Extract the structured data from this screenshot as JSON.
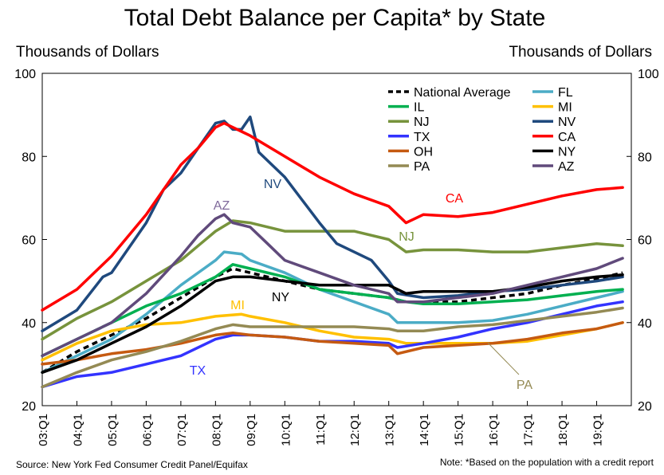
{
  "chart_data": {
    "type": "line",
    "title": "Total Debt Balance per Capita* by State",
    "ylabel_left": "Thousands of Dollars",
    "ylabel_right": "Thousands of Dollars",
    "source": "Source: New York Fed Consumer Credit Panel/Equifax",
    "note": "Note:  *Based on the population with a credit report",
    "xlim": [
      2003.0,
      2020.0
    ],
    "ylim": [
      20,
      100
    ],
    "yticks": [
      20,
      40,
      60,
      80,
      100
    ],
    "xticks": [
      {
        "label": "03:Q1",
        "x": 2003.0
      },
      {
        "label": "04:Q1",
        "x": 2004.0
      },
      {
        "label": "05:Q1",
        "x": 2005.0
      },
      {
        "label": "06:Q1",
        "x": 2006.0
      },
      {
        "label": "07:Q1",
        "x": 2007.0
      },
      {
        "label": "08:Q1",
        "x": 2008.0
      },
      {
        "label": "09:Q1",
        "x": 2009.0
      },
      {
        "label": "10:Q1",
        "x": 2010.0
      },
      {
        "label": "11:Q1",
        "x": 2011.0
      },
      {
        "label": "12:Q1",
        "x": 2012.0
      },
      {
        "label": "13:Q1",
        "x": 2013.0
      },
      {
        "label": "14:Q1",
        "x": 2014.0
      },
      {
        "label": "15:Q1",
        "x": 2015.0
      },
      {
        "label": "16:Q1",
        "x": 2016.0
      },
      {
        "label": "17:Q1",
        "x": 2017.0
      },
      {
        "label": "18:Q1",
        "x": 2018.0
      },
      {
        "label": "19:Q1",
        "x": 2019.0
      }
    ],
    "grid": false,
    "legend_position": "top-right",
    "series": [
      {
        "name": "National Average",
        "color": "#000000",
        "dashed": true,
        "points": [
          [
            2003.0,
            28
          ],
          [
            2004.0,
            33
          ],
          [
            2005.0,
            37
          ],
          [
            2006.0,
            41
          ],
          [
            2007.0,
            46
          ],
          [
            2008.0,
            51
          ],
          [
            2008.5,
            53
          ],
          [
            2009.0,
            52
          ],
          [
            2010.0,
            50
          ],
          [
            2011.0,
            48
          ],
          [
            2012.0,
            47
          ],
          [
            2013.0,
            46
          ],
          [
            2013.5,
            45
          ],
          [
            2014.0,
            45
          ],
          [
            2015.0,
            45
          ],
          [
            2016.0,
            46
          ],
          [
            2017.0,
            47
          ],
          [
            2018.0,
            49
          ],
          [
            2019.0,
            50.5
          ],
          [
            2019.75,
            52
          ]
        ]
      },
      {
        "name": "FL",
        "color": "#4bacc6",
        "dashed": false,
        "points": [
          [
            2003.0,
            28
          ],
          [
            2004.0,
            32
          ],
          [
            2005.0,
            36
          ],
          [
            2006.0,
            42
          ],
          [
            2007.0,
            49
          ],
          [
            2008.0,
            55
          ],
          [
            2008.25,
            57
          ],
          [
            2008.75,
            56.5
          ],
          [
            2009.0,
            55
          ],
          [
            2010.0,
            52
          ],
          [
            2011.0,
            48
          ],
          [
            2012.0,
            45
          ],
          [
            2013.0,
            42
          ],
          [
            2013.25,
            40
          ],
          [
            2014.0,
            40
          ],
          [
            2015.0,
            40
          ],
          [
            2016.0,
            40.5
          ],
          [
            2017.0,
            42
          ],
          [
            2018.0,
            44
          ],
          [
            2019.0,
            46
          ],
          [
            2019.75,
            47.5
          ]
        ]
      },
      {
        "name": "IL",
        "color": "#00b050",
        "dashed": false,
        "points": [
          [
            2003.0,
            32
          ],
          [
            2004.0,
            36
          ],
          [
            2005.0,
            40
          ],
          [
            2006.0,
            44
          ],
          [
            2007.0,
            47
          ],
          [
            2008.0,
            51
          ],
          [
            2008.5,
            54
          ],
          [
            2009.0,
            53
          ],
          [
            2010.0,
            51
          ],
          [
            2011.0,
            48
          ],
          [
            2012.0,
            47
          ],
          [
            2013.0,
            46
          ],
          [
            2013.5,
            45
          ],
          [
            2014.0,
            44.5
          ],
          [
            2015.0,
            44.5
          ],
          [
            2016.0,
            45
          ],
          [
            2017.0,
            45.5
          ],
          [
            2018.0,
            46.5
          ],
          [
            2019.0,
            47.5
          ],
          [
            2019.75,
            48
          ]
        ]
      },
      {
        "name": "MI",
        "color": "#ffc000",
        "dashed": false,
        "points": [
          [
            2003.0,
            31
          ],
          [
            2004.0,
            35
          ],
          [
            2005.0,
            38
          ],
          [
            2006.0,
            39.5
          ],
          [
            2007.0,
            40
          ],
          [
            2008.0,
            41.5
          ],
          [
            2008.75,
            42
          ],
          [
            2009.0,
            41.5
          ],
          [
            2010.0,
            40
          ],
          [
            2011.0,
            38
          ],
          [
            2012.0,
            36.5
          ],
          [
            2013.0,
            36
          ],
          [
            2013.5,
            35
          ],
          [
            2014.0,
            35
          ],
          [
            2015.0,
            35
          ],
          [
            2016.0,
            35
          ],
          [
            2017.0,
            35.5
          ],
          [
            2018.0,
            37
          ],
          [
            2019.0,
            38.5
          ],
          [
            2019.75,
            40
          ]
        ]
      },
      {
        "name": "NJ",
        "color": "#77933c",
        "dashed": false,
        "points": [
          [
            2003.0,
            36
          ],
          [
            2004.0,
            41
          ],
          [
            2005.0,
            45
          ],
          [
            2006.0,
            50
          ],
          [
            2007.0,
            55
          ],
          [
            2008.0,
            62
          ],
          [
            2008.5,
            64.5
          ],
          [
            2009.0,
            64
          ],
          [
            2010.0,
            62
          ],
          [
            2011.0,
            62
          ],
          [
            2012.0,
            62
          ],
          [
            2013.0,
            60
          ],
          [
            2013.5,
            57
          ],
          [
            2014.0,
            57.5
          ],
          [
            2015.0,
            57.5
          ],
          [
            2016.0,
            57
          ],
          [
            2017.0,
            57
          ],
          [
            2018.0,
            58
          ],
          [
            2019.0,
            59
          ],
          [
            2019.75,
            58.5
          ]
        ]
      },
      {
        "name": "NV",
        "color": "#1f497d",
        "dashed": false,
        "points": [
          [
            2003.0,
            38
          ],
          [
            2004.0,
            43
          ],
          [
            2004.75,
            51
          ],
          [
            2005.0,
            52
          ],
          [
            2006.0,
            64
          ],
          [
            2006.5,
            72
          ],
          [
            2007.0,
            76
          ],
          [
            2007.5,
            82
          ],
          [
            2008.0,
            88
          ],
          [
            2008.25,
            88.5
          ],
          [
            2008.5,
            86.5
          ],
          [
            2008.75,
            86.5
          ],
          [
            2009.0,
            89.5
          ],
          [
            2009.25,
            81
          ],
          [
            2010.0,
            75
          ],
          [
            2011.0,
            64
          ],
          [
            2011.5,
            59
          ],
          [
            2012.0,
            57
          ],
          [
            2012.5,
            55
          ],
          [
            2013.0,
            50
          ],
          [
            2013.25,
            47
          ],
          [
            2014.0,
            46
          ],
          [
            2015.0,
            46.5
          ],
          [
            2016.0,
            47.5
          ],
          [
            2017.0,
            48
          ],
          [
            2018.0,
            49
          ],
          [
            2019.0,
            50
          ],
          [
            2019.75,
            51
          ]
        ]
      },
      {
        "name": "TX",
        "color": "#3333ff",
        "dashed": false,
        "points": [
          [
            2003.0,
            24.5
          ],
          [
            2004.0,
            27
          ],
          [
            2005.0,
            28
          ],
          [
            2006.0,
            30
          ],
          [
            2007.0,
            32
          ],
          [
            2008.0,
            36
          ],
          [
            2008.5,
            37
          ],
          [
            2009.0,
            37
          ],
          [
            2010.0,
            36.5
          ],
          [
            2011.0,
            35.5
          ],
          [
            2012.0,
            35.5
          ],
          [
            2013.0,
            35
          ],
          [
            2013.25,
            34
          ],
          [
            2014.0,
            35
          ],
          [
            2015.0,
            36.5
          ],
          [
            2016.0,
            38.5
          ],
          [
            2017.0,
            40
          ],
          [
            2018.0,
            42
          ],
          [
            2019.0,
            44
          ],
          [
            2019.75,
            45
          ]
        ]
      },
      {
        "name": "CA",
        "color": "#ff0000",
        "dashed": false,
        "points": [
          [
            2003.0,
            43
          ],
          [
            2004.0,
            48
          ],
          [
            2005.0,
            56
          ],
          [
            2006.0,
            66
          ],
          [
            2007.0,
            78
          ],
          [
            2007.5,
            82
          ],
          [
            2008.0,
            87
          ],
          [
            2008.25,
            88
          ],
          [
            2008.75,
            86
          ],
          [
            2009.0,
            85
          ],
          [
            2010.0,
            80
          ],
          [
            2011.0,
            75
          ],
          [
            2012.0,
            71
          ],
          [
            2013.0,
            68
          ],
          [
            2013.5,
            64
          ],
          [
            2014.0,
            66
          ],
          [
            2015.0,
            65.5
          ],
          [
            2016.0,
            66.5
          ],
          [
            2017.0,
            68.5
          ],
          [
            2018.0,
            70.5
          ],
          [
            2019.0,
            72
          ],
          [
            2019.75,
            72.5
          ]
        ]
      },
      {
        "name": "OH",
        "color": "#c55a11",
        "dashed": false,
        "points": [
          [
            2003.0,
            30
          ],
          [
            2004.0,
            31
          ],
          [
            2005.0,
            32.5
          ],
          [
            2006.0,
            33.5
          ],
          [
            2007.0,
            35
          ],
          [
            2008.0,
            37
          ],
          [
            2008.5,
            37.5
          ],
          [
            2009.0,
            37
          ],
          [
            2010.0,
            36.5
          ],
          [
            2011.0,
            35.5
          ],
          [
            2012.0,
            35
          ],
          [
            2013.0,
            34.5
          ],
          [
            2013.25,
            32.5
          ],
          [
            2014.0,
            34
          ],
          [
            2015.0,
            34.5
          ],
          [
            2016.0,
            35
          ],
          [
            2017.0,
            36
          ],
          [
            2018.0,
            37.5
          ],
          [
            2019.0,
            38.5
          ],
          [
            2019.75,
            40
          ]
        ]
      },
      {
        "name": "NY",
        "color": "#000000",
        "dashed": false,
        "points": [
          [
            2003.0,
            28
          ],
          [
            2004.0,
            31
          ],
          [
            2005.0,
            35
          ],
          [
            2006.0,
            39
          ],
          [
            2007.0,
            44
          ],
          [
            2008.0,
            50
          ],
          [
            2008.5,
            51
          ],
          [
            2009.0,
            51
          ],
          [
            2010.0,
            50
          ],
          [
            2011.0,
            49
          ],
          [
            2012.0,
            49
          ],
          [
            2013.0,
            49
          ],
          [
            2013.5,
            47
          ],
          [
            2014.0,
            47.5
          ],
          [
            2015.0,
            47.5
          ],
          [
            2016.0,
            47.5
          ],
          [
            2017.0,
            48.5
          ],
          [
            2018.0,
            50
          ],
          [
            2019.0,
            51
          ],
          [
            2019.75,
            51.5
          ]
        ]
      },
      {
        "name": "PA",
        "color": "#948a54",
        "dashed": false,
        "points": [
          [
            2003.0,
            24.5
          ],
          [
            2004.0,
            28
          ],
          [
            2005.0,
            31
          ],
          [
            2006.0,
            33
          ],
          [
            2007.0,
            35.5
          ],
          [
            2008.0,
            38.5
          ],
          [
            2008.5,
            39.5
          ],
          [
            2009.0,
            39
          ],
          [
            2010.0,
            39
          ],
          [
            2011.0,
            39
          ],
          [
            2012.0,
            39
          ],
          [
            2013.0,
            38.5
          ],
          [
            2013.25,
            38
          ],
          [
            2014.0,
            38
          ],
          [
            2015.0,
            39
          ],
          [
            2016.0,
            39.5
          ],
          [
            2017.0,
            40.5
          ],
          [
            2018.0,
            41.5
          ],
          [
            2019.0,
            42.5
          ],
          [
            2019.75,
            43.5
          ]
        ]
      },
      {
        "name": "AZ",
        "color": "#604a7b",
        "dashed": false,
        "points": [
          [
            2003.0,
            32
          ],
          [
            2004.0,
            36
          ],
          [
            2005.0,
            40
          ],
          [
            2006.0,
            47
          ],
          [
            2007.0,
            56
          ],
          [
            2007.5,
            61
          ],
          [
            2008.0,
            65
          ],
          [
            2008.25,
            66
          ],
          [
            2008.5,
            64
          ],
          [
            2009.0,
            63
          ],
          [
            2009.5,
            59
          ],
          [
            2010.0,
            55
          ],
          [
            2011.0,
            52
          ],
          [
            2012.0,
            49
          ],
          [
            2013.0,
            47
          ],
          [
            2013.25,
            45
          ],
          [
            2014.0,
            45
          ],
          [
            2015.0,
            46
          ],
          [
            2016.0,
            47
          ],
          [
            2017.0,
            49
          ],
          [
            2018.0,
            51
          ],
          [
            2019.0,
            53
          ],
          [
            2019.75,
            55.5
          ]
        ]
      }
    ],
    "annotations": [
      {
        "text": "NV",
        "color": "#1f497d"
      },
      {
        "text": "CA",
        "color": "#ff0000"
      },
      {
        "text": "AZ",
        "color": "#7f6a9b"
      },
      {
        "text": "NJ",
        "color": "#77933c"
      },
      {
        "text": "MI",
        "color": "#ffc000"
      },
      {
        "text": "NY",
        "color": "#000000"
      },
      {
        "text": "TX",
        "color": "#3333ff"
      },
      {
        "text": "PA",
        "color": "#948a54"
      }
    ]
  }
}
